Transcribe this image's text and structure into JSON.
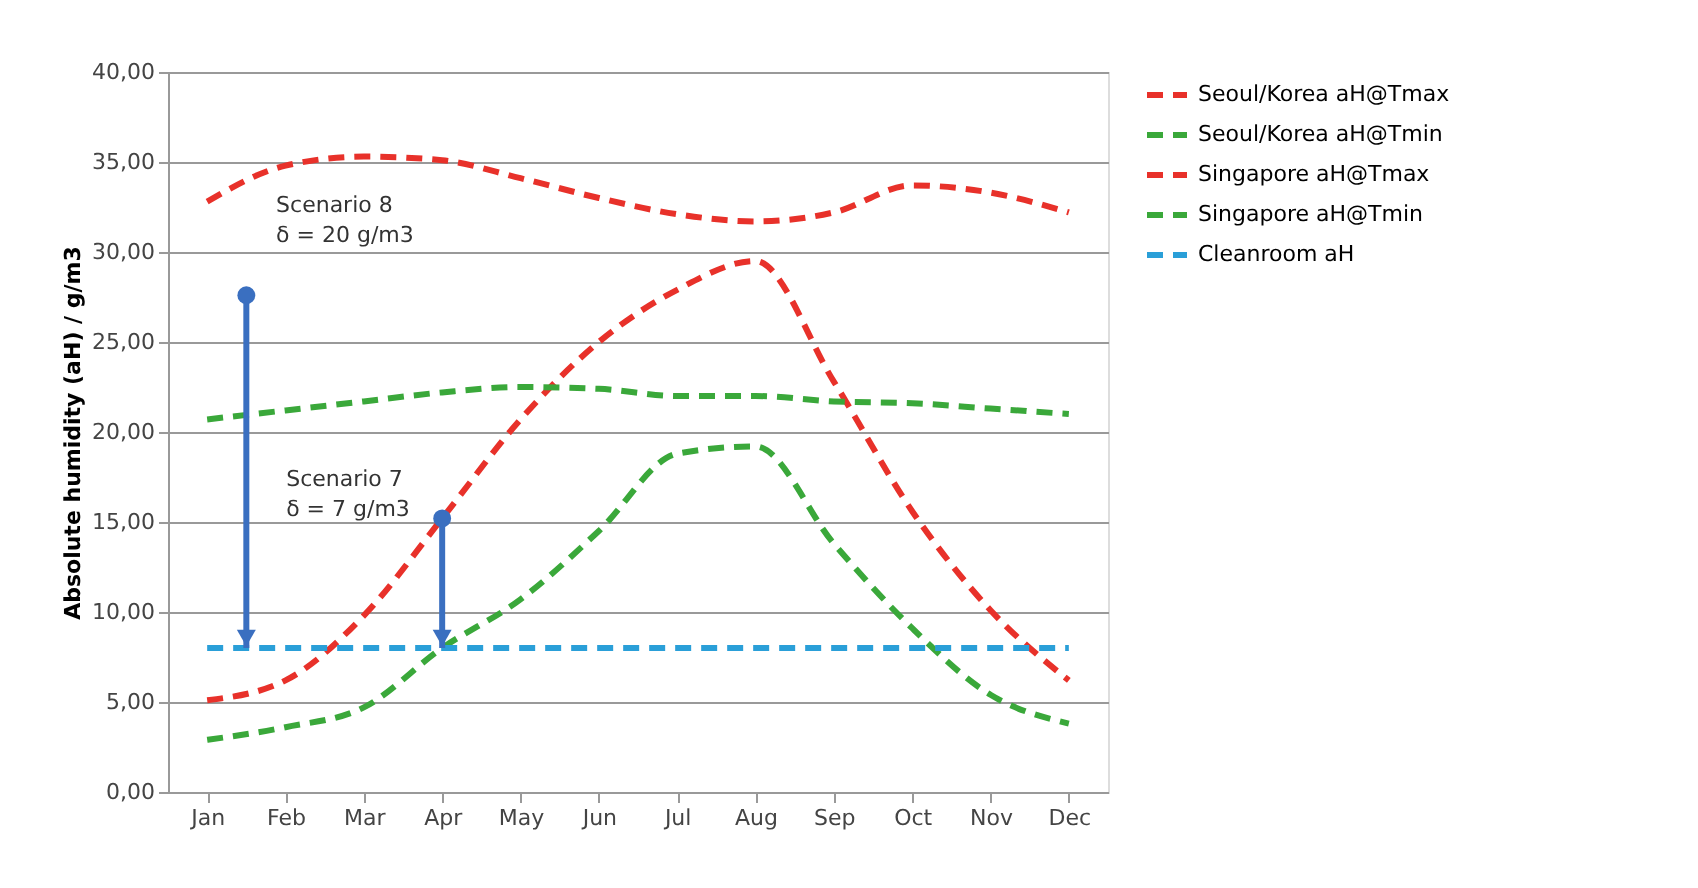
{
  "chart_data": {
    "type": "line",
    "ylabel": "Absolute humidity (aH) / g/m3",
    "categories": [
      "Jan",
      "Feb",
      "Mar",
      "Apr",
      "May",
      "Jun",
      "Jul",
      "Aug",
      "Sep",
      "Oct",
      "Nov",
      "Dec"
    ],
    "series": [
      {
        "name": "Seoul/Korea aH@Tmax",
        "color": "#e8312a",
        "line_style": "dashed",
        "values": [
          5.1,
          6.2,
          9.8,
          15.2,
          20.7,
          25.0,
          27.9,
          29.5,
          22.8,
          15.6,
          10.1,
          6.2
        ]
      },
      {
        "name": "Seoul/Korea aH@Tmin",
        "color": "#3aa83a",
        "line_style": "dashed",
        "values": [
          2.9,
          3.6,
          4.7,
          8.0,
          10.7,
          14.5,
          18.8,
          19.2,
          13.8,
          9.1,
          5.4,
          3.8
        ]
      },
      {
        "name": "Singapore aH@Tmax",
        "color": "#e8312a",
        "line_style": "dashed",
        "values": [
          32.8,
          34.8,
          35.3,
          35.1,
          34.1,
          33.0,
          32.1,
          31.7,
          32.2,
          33.7,
          33.3,
          32.2
        ]
      },
      {
        "name": "Singapore aH@Tmin",
        "color": "#3aa83a",
        "line_style": "dashed",
        "values": [
          20.7,
          21.2,
          21.7,
          22.2,
          22.5,
          22.4,
          22.0,
          22.0,
          21.7,
          21.6,
          21.3,
          21.0
        ]
      },
      {
        "name": "Cleanroom aH",
        "color": "#2a9fd8",
        "line_style": "dashed",
        "values": [
          8.0,
          8.0,
          8.0,
          8.0,
          8.0,
          8.0,
          8.0,
          8.0,
          8.0,
          8.0,
          8.0,
          8.0
        ]
      }
    ],
    "annotations": [
      "Scenario 8\nδ = 20 g/m3",
      {
        "text": "Scenario 7\nδ = 7 g/m3",
        "x": "Apr",
        "y": 15.2
      }
    ],
    "ylim": [
      0,
      40
    ],
    "yticks": [
      {
        "value": 0,
        "label": "0,00"
      },
      {
        "value": 5,
        "label": "5,00"
      },
      {
        "value": 10,
        "label": "10,00"
      },
      {
        "value": 15,
        "label": "15,00"
      },
      {
        "value": 20,
        "label": "20,00"
      },
      {
        "value": 25,
        "label": "25,00"
      },
      {
        "value": 30,
        "label": "30,00"
      },
      {
        "value": 35,
        "label": "35,00"
      },
      {
        "value": 40,
        "label": "40,00"
      }
    ],
    "grid": "y",
    "legend": "right",
    "marker": "none"
  }
}
